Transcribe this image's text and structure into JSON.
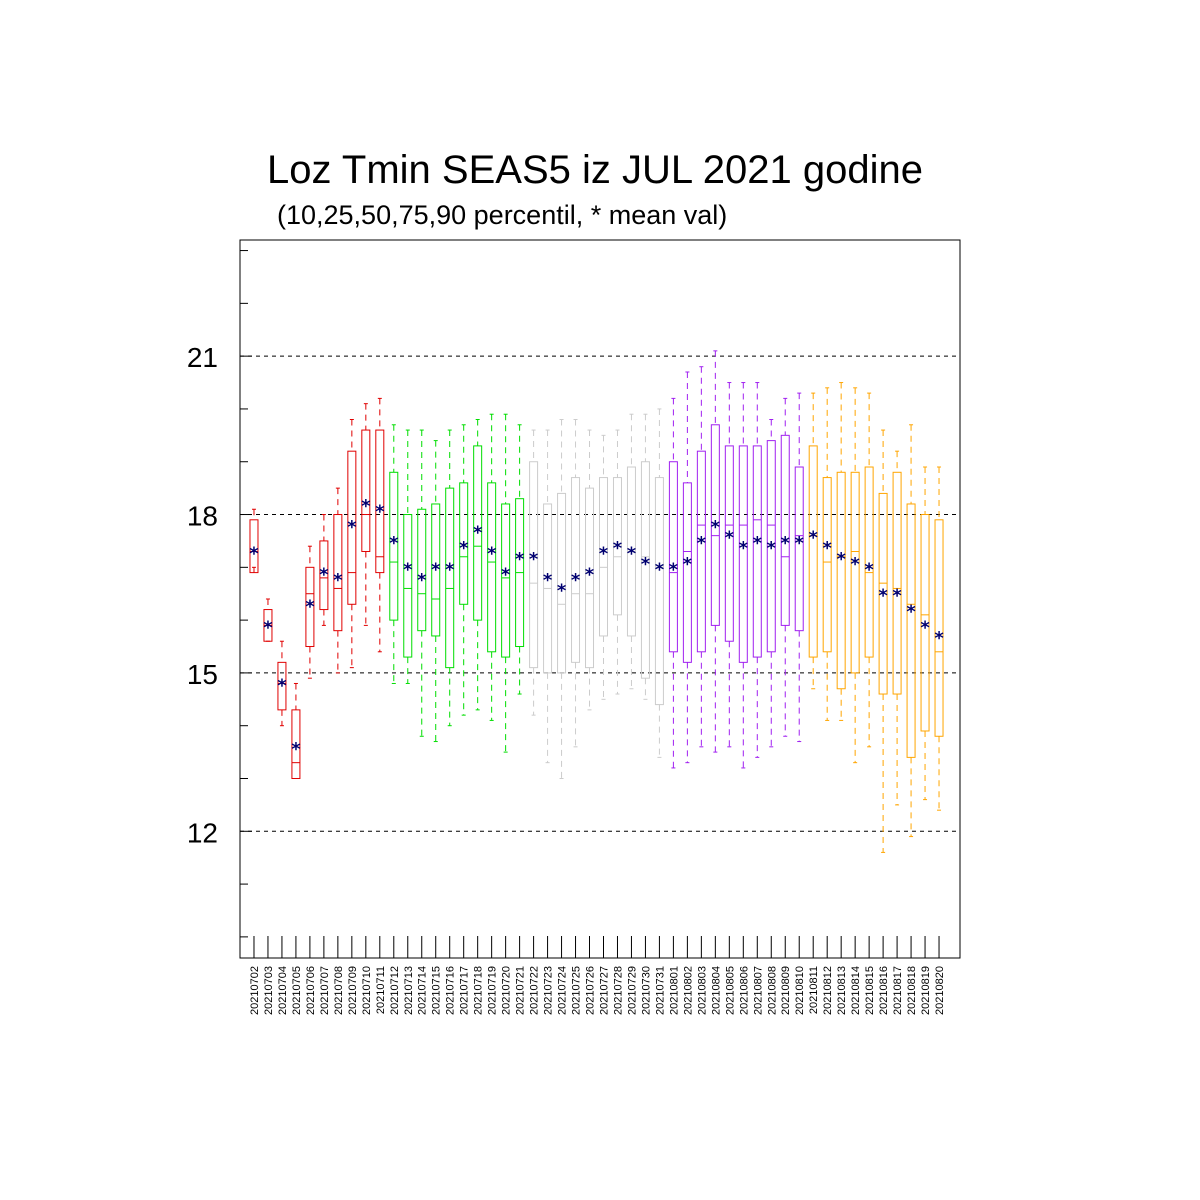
{
  "chart_data": {
    "type": "box",
    "title": "Loz Tmin SEAS5 iz JUL 2021 godine",
    "subtitle": "(10,25,50,75,90 percentil, * mean val)",
    "ylim": [
      9.6,
      23.2
    ],
    "y_ticks": [
      12,
      15,
      18,
      21
    ],
    "y_tick_labels": [
      "12",
      "15",
      "18",
      "21"
    ],
    "grid": "dashed horizontal at major ticks",
    "categories": [
      "20210702",
      "20210703",
      "20210704",
      "20210705",
      "20210706",
      "20210707",
      "20210708",
      "20210709",
      "20210710",
      "20210711",
      "20210712",
      "20210713",
      "20210714",
      "20210715",
      "20210716",
      "20210717",
      "20210718",
      "20210719",
      "20210720",
      "20210721",
      "20210722",
      "20210723",
      "20210724",
      "20210725",
      "20210726",
      "20210727",
      "20210728",
      "20210729",
      "20210730",
      "20210731",
      "20210801",
      "20210802",
      "20210803",
      "20210804",
      "20210805",
      "20210806",
      "20210807",
      "20210808",
      "20210809",
      "20210810",
      "20210811",
      "20210812",
      "20210813",
      "20210814",
      "20210815",
      "20210816",
      "20210817",
      "20210818",
      "20210819",
      "20210820"
    ],
    "colors": {
      "red": "#e00000",
      "green": "#00dd00",
      "gray": "#cccccc",
      "purple": "#a020f0",
      "orange": "#ffa500",
      "mean_marker": "#000070"
    },
    "color_groups": [
      {
        "color": "red",
        "count": 10
      },
      {
        "color": "green",
        "count": 10
      },
      {
        "color": "gray",
        "count": 10
      },
      {
        "color": "purple",
        "count": 10
      },
      {
        "color": "orange",
        "count": 10
      }
    ],
    "series": [
      {
        "name": "p10",
        "values": [
          17.0,
          15.6,
          14.0,
          13.0,
          14.9,
          15.9,
          15.0,
          15.1,
          15.9,
          15.4,
          14.8,
          14.8,
          13.8,
          13.7,
          14.0,
          14.2,
          14.3,
          14.1,
          13.5,
          14.6,
          14.2,
          13.3,
          13.0,
          13.6,
          14.3,
          14.5,
          14.6,
          14.7,
          14.5,
          13.4,
          13.2,
          13.3,
          13.6,
          13.5,
          13.6,
          13.2,
          13.4,
          13.6,
          13.8,
          13.7,
          14.7,
          14.1,
          14.1,
          13.3,
          13.6,
          11.6,
          12.5,
          11.9,
          12.6,
          12.4
        ]
      },
      {
        "name": "p25",
        "values": [
          16.9,
          15.6,
          14.3,
          13.0,
          15.5,
          16.2,
          15.8,
          16.3,
          17.3,
          16.9,
          16.0,
          15.3,
          15.8,
          15.7,
          15.1,
          16.3,
          16.0,
          15.4,
          15.3,
          15.5,
          15.1,
          15.0,
          15.0,
          15.2,
          15.1,
          15.7,
          16.1,
          15.7,
          14.9,
          14.4,
          15.4,
          15.2,
          15.4,
          15.9,
          15.6,
          15.2,
          15.3,
          15.4,
          15.9,
          15.8,
          15.3,
          15.4,
          14.7,
          15.0,
          15.3,
          14.6,
          14.6,
          13.4,
          13.9,
          13.8
        ]
      },
      {
        "name": "p50",
        "values": [
          17.3,
          15.9,
          14.8,
          13.3,
          16.5,
          16.8,
          16.6,
          16.9,
          18.0,
          17.2,
          17.1,
          16.6,
          16.5,
          16.4,
          16.6,
          17.2,
          17.4,
          17.1,
          16.8,
          16.9,
          16.7,
          16.6,
          16.3,
          16.5,
          16.5,
          17.0,
          17.2,
          17.3,
          17.2,
          17.0,
          16.9,
          17.3,
          17.8,
          17.6,
          17.8,
          17.8,
          17.9,
          17.8,
          17.2,
          17.6,
          17.6,
          17.1,
          17.2,
          17.3,
          16.9,
          16.7,
          16.6,
          16.3,
          16.1,
          15.4
        ]
      },
      {
        "name": "p75",
        "values": [
          17.9,
          16.2,
          15.2,
          14.3,
          17.0,
          17.5,
          18.0,
          19.2,
          19.6,
          19.6,
          18.8,
          18.0,
          18.1,
          18.2,
          18.5,
          18.6,
          19.3,
          18.6,
          18.2,
          18.3,
          19.0,
          18.2,
          18.4,
          18.7,
          18.5,
          18.7,
          18.7,
          18.9,
          19.0,
          18.7,
          19.0,
          18.6,
          19.2,
          19.7,
          19.3,
          19.3,
          19.3,
          19.4,
          19.5,
          18.9,
          19.3,
          18.7,
          18.8,
          18.8,
          18.9,
          18.4,
          18.8,
          18.2,
          18.0,
          17.9
        ]
      },
      {
        "name": "p90",
        "values": [
          18.1,
          16.4,
          15.6,
          14.8,
          17.4,
          18.0,
          18.5,
          19.8,
          20.1,
          20.2,
          19.7,
          19.6,
          19.6,
          19.4,
          19.6,
          19.7,
          19.8,
          19.9,
          19.9,
          19.7,
          19.6,
          19.6,
          19.8,
          19.8,
          19.6,
          19.5,
          19.6,
          19.9,
          19.9,
          20.0,
          20.2,
          20.7,
          20.8,
          21.1,
          20.5,
          20.5,
          20.5,
          19.8,
          20.2,
          20.3,
          20.3,
          20.4,
          20.5,
          20.4,
          20.3,
          19.6,
          19.2,
          19.7,
          18.9,
          18.9
        ]
      },
      {
        "name": "mean",
        "values": [
          17.3,
          15.9,
          14.8,
          13.6,
          16.3,
          16.9,
          16.8,
          17.8,
          18.2,
          18.1,
          17.5,
          17.0,
          16.8,
          17.0,
          17.0,
          17.4,
          17.7,
          17.3,
          16.9,
          17.2,
          17.2,
          16.8,
          16.6,
          16.8,
          16.9,
          17.3,
          17.4,
          17.3,
          17.1,
          17.0,
          17.0,
          17.1,
          17.5,
          17.8,
          17.6,
          17.4,
          17.5,
          17.4,
          17.5,
          17.5,
          17.6,
          17.4,
          17.2,
          17.1,
          17.0,
          16.5,
          16.5,
          16.2,
          15.9,
          15.7
        ]
      }
    ]
  }
}
